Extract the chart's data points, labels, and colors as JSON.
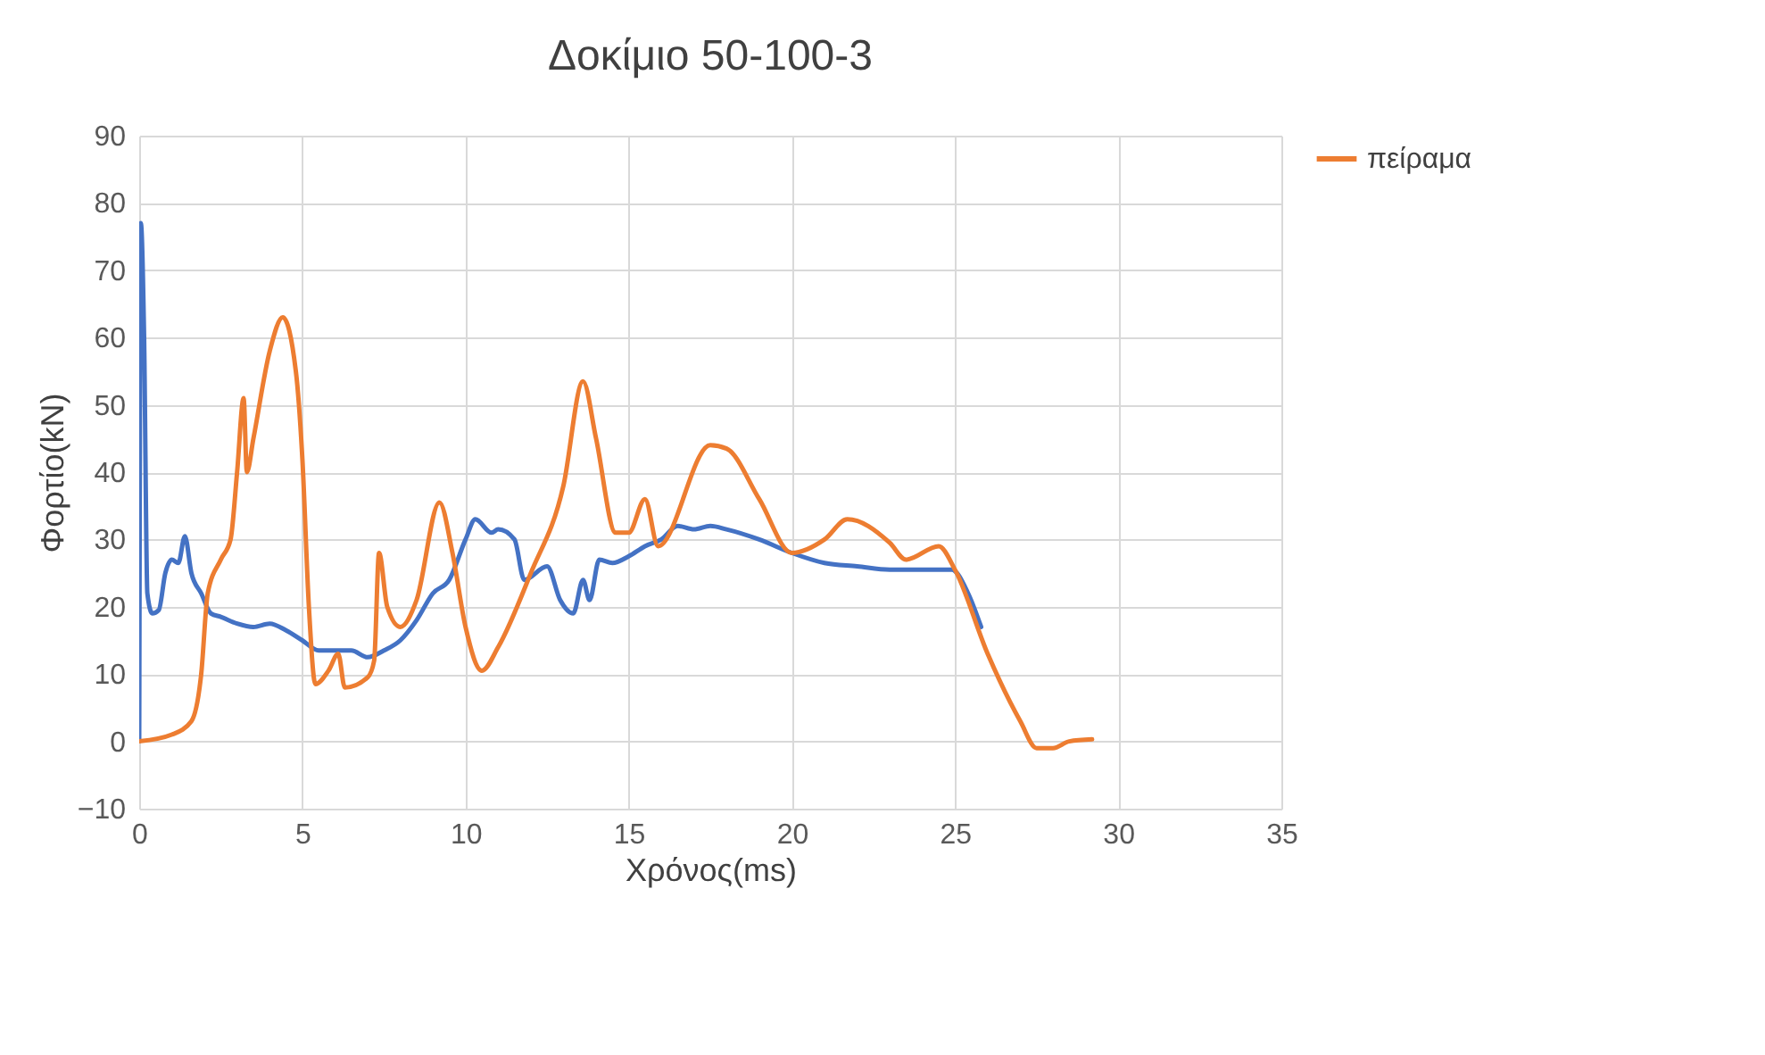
{
  "chart_data": {
    "type": "line",
    "title": "Δοκίμιο 50-100-3",
    "xlabel": "Χρόνος(ms)",
    "ylabel": "Φορτίο(kN)",
    "xlim": [
      0,
      35
    ],
    "xticks": [
      0,
      5,
      10,
      15,
      20,
      25,
      30,
      35
    ],
    "ylim": [
      -10,
      90
    ],
    "yticks": [
      -10,
      0,
      10,
      20,
      30,
      40,
      50,
      60,
      70,
      80,
      90
    ],
    "grid": true,
    "legend": "right",
    "marker": "none",
    "line_style": "solid",
    "series": [
      {
        "color": "#4472c4",
        "x": [
          0,
          0.05,
          0.15,
          0.25,
          0.4,
          0.6,
          0.8,
          1.0,
          1.2,
          1.4,
          1.6,
          1.9,
          2.2,
          2.5,
          3,
          3.5,
          4,
          4.5,
          5,
          5.5,
          6.5,
          7,
          7.5,
          8,
          8.5,
          9,
          9.5,
          10,
          10.3,
          10.8,
          11,
          11.5,
          11.8,
          12.5,
          12.9,
          13.3,
          13.6,
          13.8,
          14.1,
          14.5,
          15,
          15.5,
          16,
          16.5,
          17,
          17.5,
          18,
          19,
          20,
          21,
          22,
          23,
          24,
          24.9,
          25.4,
          25.8
        ],
        "values": [
          0,
          77,
          60,
          22,
          19,
          19.5,
          25,
          27,
          26.5,
          30.5,
          25,
          22,
          19,
          18.5,
          17.5,
          17,
          17.5,
          16.5,
          15,
          13.5,
          13.5,
          12.5,
          13.5,
          15,
          18,
          22,
          24,
          30,
          33,
          31,
          31.5,
          30,
          24,
          26,
          21,
          19,
          24,
          21,
          27,
          26.5,
          27.5,
          29,
          30,
          32,
          31.5,
          32,
          31.5,
          30,
          28,
          26.5,
          26,
          25.5,
          25.5,
          25.5,
          22,
          17
        ]
      },
      {
        "name": "πείραμα",
        "color": "#ed7d31",
        "x": [
          0,
          1,
          1.6,
          1.9,
          2.1,
          2.5,
          2.8,
          3.0,
          3.2,
          3.3,
          3.5,
          4,
          4.4,
          4.8,
          5,
          5.2,
          5.4,
          5.8,
          6.1,
          6.3,
          7,
          7.2,
          7.35,
          7.6,
          8,
          8.5,
          9.2,
          9.6,
          10,
          10.5,
          11,
          12,
          13,
          13.6,
          14,
          14.6,
          15,
          15.5,
          15.9,
          17.5,
          18,
          19,
          20,
          21,
          21.7,
          23,
          23.5,
          24.5,
          25,
          26,
          27,
          27.5,
          28,
          28.5,
          29.2
        ],
        "values": [
          0,
          1,
          3,
          10,
          22,
          27,
          30,
          40,
          51,
          40,
          45,
          58,
          63,
          55,
          42,
          20,
          8.5,
          10.5,
          13,
          8,
          9.5,
          12,
          28,
          20,
          17,
          21,
          35.5,
          28,
          17,
          10.5,
          14,
          25,
          38,
          53.5,
          45,
          31,
          31,
          36,
          29,
          44,
          43.5,
          36,
          28,
          30,
          33,
          29.5,
          27,
          29,
          25.5,
          13,
          3,
          -1,
          -1,
          0,
          0.3
        ]
      }
    ]
  }
}
